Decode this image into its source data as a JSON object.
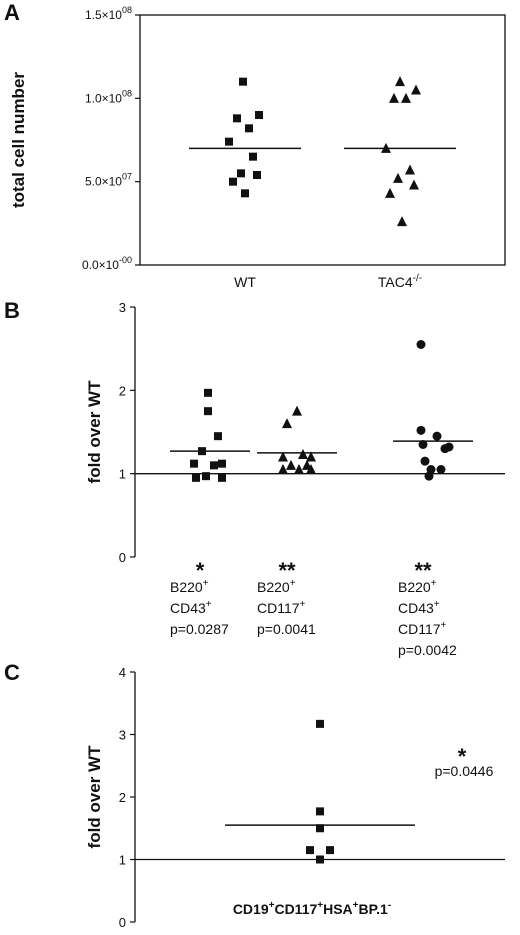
{
  "chart_data": [
    {
      "panel": "A",
      "type": "scatter",
      "ylabel": "total cell number",
      "yticks": [
        "0.0×10-00",
        "5.0×1007",
        "1.0×1008",
        "1.5×1008"
      ],
      "ytick_parts": [
        {
          "m": "0.0×10",
          "e": "-00"
        },
        {
          "m": "5.0×10",
          "e": "07"
        },
        {
          "m": "1.0×10",
          "e": "08"
        },
        {
          "m": "1.5×10",
          "e": "08"
        }
      ],
      "ylim": [
        0,
        150000000
      ],
      "tick_values": [
        0,
        50000000,
        100000000,
        150000000
      ],
      "categories": [
        "WT",
        "TAC4-/-"
      ],
      "category_parts": [
        {
          "text": "WT",
          "sup": ""
        },
        {
          "text": "TAC4",
          "sup": "-/-"
        }
      ],
      "series": [
        {
          "category": "WT",
          "marker": "square",
          "values": [
            110000000,
            90000000,
            88000000,
            82000000,
            74000000,
            65000000,
            55000000,
            54000000,
            50000000,
            43000000
          ],
          "mean": 70000000
        },
        {
          "category": "TAC4-/-",
          "marker": "triangle",
          "values": [
            110000000,
            105000000,
            100000000,
            100000000,
            70000000,
            57000000,
            52000000,
            48000000,
            43000000,
            26000000
          ],
          "mean": 70000000
        }
      ]
    },
    {
      "panel": "B",
      "type": "scatter",
      "ylabel": "fold over WT",
      "yticks": [
        "0",
        "1",
        "2",
        "3"
      ],
      "ylim": [
        0,
        3
      ],
      "reference_line": 1,
      "categories": [
        "B220+ CD43+ p=0.0287",
        "B220+ CD117+ p=0.0041",
        "B220+ CD43+ CD117+ p=0.0042"
      ],
      "category_lines": [
        [
          {
            "text": "B220",
            "sup": "+"
          },
          {
            "text": "CD43",
            "sup": "+"
          },
          {
            "text": "p=0.0287",
            "sup": ""
          }
        ],
        [
          {
            "text": "B220",
            "sup": "+"
          },
          {
            "text": "CD117",
            "sup": "+"
          },
          {
            "text": "p=0.0041",
            "sup": ""
          }
        ],
        [
          {
            "text": "B220",
            "sup": "+"
          },
          {
            "text": "CD43",
            "sup": "+"
          },
          {
            "text": "CD117",
            "sup": "+"
          },
          {
            "text": "p=0.0042",
            "sup": ""
          }
        ]
      ],
      "significance": [
        "*",
        "**",
        "**"
      ],
      "series": [
        {
          "marker": "square",
          "values": [
            1.97,
            1.75,
            1.45,
            1.27,
            1.12,
            1.12,
            1.1,
            0.97,
            0.95,
            0.95
          ],
          "mean": 1.27
        },
        {
          "marker": "triangle",
          "values": [
            1.75,
            1.6,
            1.23,
            1.2,
            1.2,
            1.1,
            1.1,
            1.05,
            1.05,
            1.05
          ],
          "mean": 1.25
        },
        {
          "marker": "circle",
          "values": [
            2.55,
            1.52,
            1.45,
            1.35,
            1.3,
            1.32,
            1.15,
            1.05,
            1.05,
            0.97
          ],
          "mean": 1.39
        }
      ]
    },
    {
      "panel": "C",
      "type": "scatter",
      "ylabel": "fold over WT",
      "yticks": [
        "0",
        "1",
        "2",
        "3",
        "4"
      ],
      "ylim": [
        0,
        4
      ],
      "reference_line": 1,
      "category": "CD19+CD117+HSA+BP.1-",
      "category_parts": [
        {
          "text": "CD19",
          "sup": "+"
        },
        {
          "text": "CD117",
          "sup": "+"
        },
        {
          "text": "HSA",
          "sup": "+"
        },
        {
          "text": "BP.1",
          "sup": "-"
        }
      ],
      "significance": "*",
      "pvalue": "p=0.0446",
      "series": [
        {
          "marker": "square",
          "values": [
            3.17,
            1.77,
            1.5,
            1.15,
            1.15,
            1.0
          ],
          "mean": 1.55
        }
      ]
    }
  ]
}
